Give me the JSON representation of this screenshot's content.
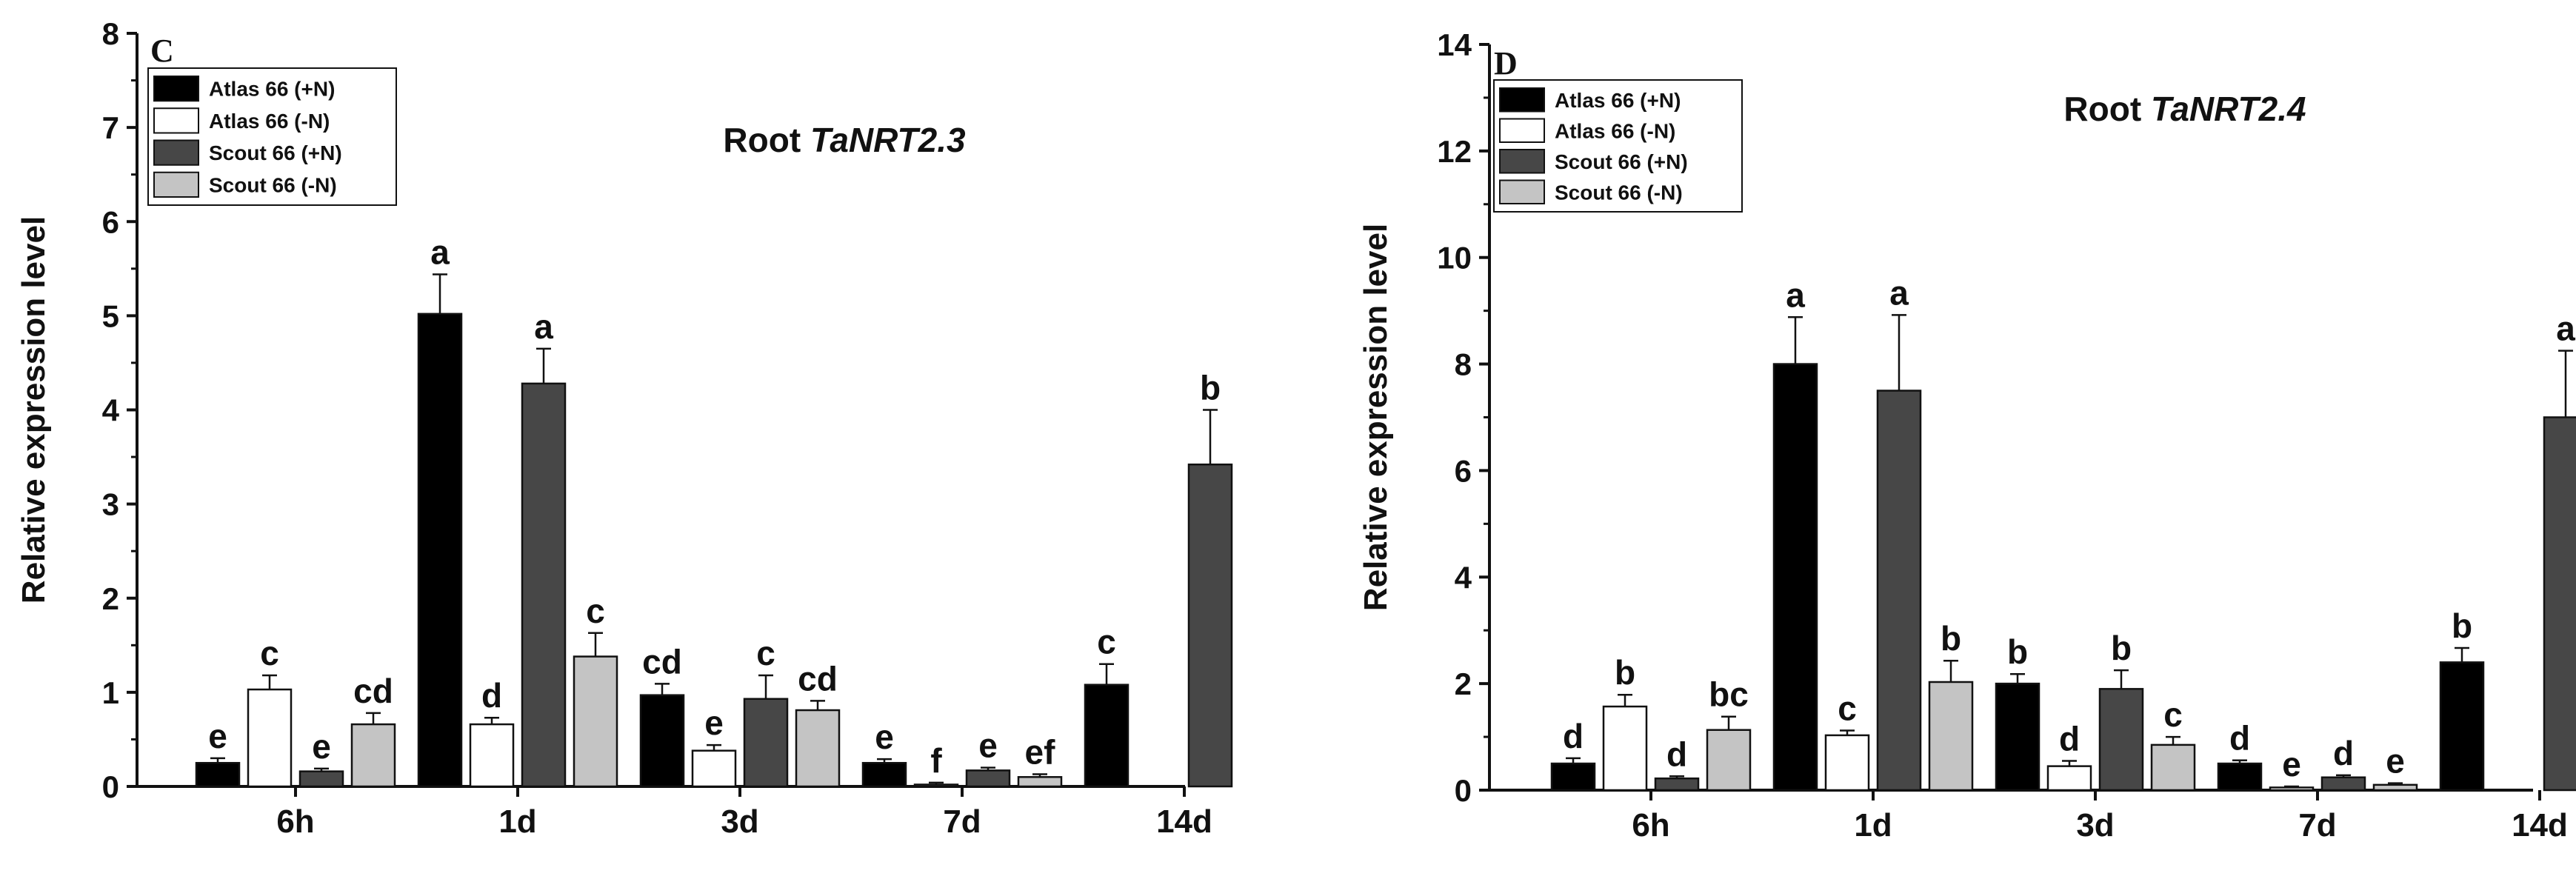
{
  "chart_data": [
    {
      "type": "bar",
      "panel": "C",
      "title_prefix": "Root ",
      "title_gene": "TaNRT2.3",
      "ylabel": "Relative expression level",
      "xlabel": "",
      "ylim": [
        0,
        8
      ],
      "yticks": [
        "0",
        "1",
        "2",
        "3",
        "4",
        "5",
        "6",
        "7",
        "8"
      ],
      "categories": [
        "6h",
        "1d",
        "3d",
        "7d",
        "14d"
      ],
      "legend": [
        "Atlas 66 (+N)",
        "Atlas 66 (-N)",
        "Scout 66 (+N)",
        "Scout 66 (-N)"
      ],
      "series": [
        {
          "name": "Atlas 66 (+N)",
          "color": "#000000",
          "values": [
            0.25,
            5.02,
            0.97,
            0.25,
            1.08
          ],
          "errors": [
            0.05,
            0.42,
            0.12,
            0.04,
            0.22
          ],
          "labels": [
            "e",
            "a",
            "cd",
            "e",
            "c"
          ]
        },
        {
          "name": "Atlas 66 (-N)",
          "color": "#ffffff",
          "values": [
            1.03,
            0.66,
            0.38,
            0.02,
            null
          ],
          "errors": [
            0.15,
            0.07,
            0.06,
            0.02,
            null
          ],
          "labels": [
            "c",
            "d",
            "e",
            "f",
            ""
          ]
        },
        {
          "name": "Scout 66 (+N)",
          "color": "#474747",
          "values": [
            0.16,
            4.28,
            0.93,
            0.17,
            3.42
          ],
          "errors": [
            0.03,
            0.37,
            0.25,
            0.03,
            0.58
          ],
          "labels": [
            "e",
            "a",
            "c",
            "e",
            "b"
          ]
        },
        {
          "name": "Scout 66 (-N)",
          "color": "#c4c4c4",
          "values": [
            0.66,
            1.38,
            0.81,
            0.1,
            null
          ],
          "errors": [
            0.12,
            0.25,
            0.1,
            0.03,
            null
          ],
          "labels": [
            "cd",
            "c",
            "cd",
            "ef",
            ""
          ]
        }
      ]
    },
    {
      "type": "bar",
      "panel": "D",
      "title_prefix": "Root ",
      "title_gene": "TaNRT2.4",
      "ylabel": "Relative expression level",
      "xlabel": "",
      "ylim": [
        0,
        14
      ],
      "yticks": [
        "0",
        "2",
        "4",
        "6",
        "8",
        "10",
        "12",
        "14"
      ],
      "categories": [
        "6h",
        "1d",
        "3d",
        "7d",
        "14d"
      ],
      "legend": [
        "Atlas 66 (+N)",
        "Atlas 66 (-N)",
        "Scout 66 (+N)",
        "Scout 66 (-N)"
      ],
      "series": [
        {
          "name": "Atlas 66 (+N)",
          "color": "#000000",
          "values": [
            0.5,
            8.0,
            2.0,
            0.5,
            2.4
          ],
          "errors": [
            0.1,
            0.88,
            0.18,
            0.06,
            0.27
          ],
          "labels": [
            "d",
            "a",
            "b",
            "d",
            "b"
          ]
        },
        {
          "name": "Atlas 66 (-N)",
          "color": "#ffffff",
          "values": [
            1.57,
            1.03,
            0.45,
            0.05,
            null
          ],
          "errors": [
            0.22,
            0.09,
            0.1,
            0.02,
            null
          ],
          "labels": [
            "b",
            "c",
            "d",
            "e",
            ""
          ]
        },
        {
          "name": "Scout 66 (+N)",
          "color": "#474747",
          "values": [
            0.22,
            7.5,
            1.9,
            0.24,
            7.0
          ],
          "errors": [
            0.04,
            1.42,
            0.35,
            0.04,
            1.25
          ],
          "labels": [
            "d",
            "a",
            "b",
            "d",
            "a"
          ]
        },
        {
          "name": "Scout 66 (-N)",
          "color": "#c4c4c4",
          "values": [
            1.13,
            2.03,
            0.85,
            0.1,
            null
          ],
          "errors": [
            0.25,
            0.4,
            0.15,
            0.03,
            null
          ],
          "labels": [
            "bc",
            "b",
            "c",
            "e",
            ""
          ]
        }
      ]
    }
  ]
}
